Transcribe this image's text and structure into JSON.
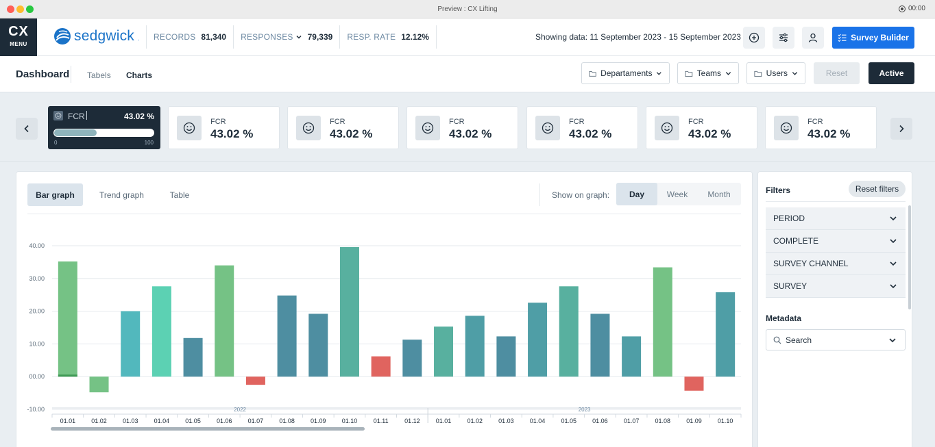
{
  "window": {
    "title": "Preview : CX Lifting",
    "time": "00:00"
  },
  "header": {
    "cx_label": "CX",
    "menu_label": "MENU",
    "logo_text": "sedgwick",
    "logo_mark": ".",
    "stats": [
      {
        "label": "RECORDS",
        "value": "81,340"
      },
      {
        "label": "RESPONSES",
        "value": "79,339"
      },
      {
        "label": "RESP. RATE",
        "value": "12.12%"
      }
    ],
    "showing_text": "Showing data: 11 September 2023 - 15 September 2023",
    "survey_button": "Survey Bulider"
  },
  "subheader": {
    "title": "Dashboard",
    "tabs": [
      "Tabels",
      "Charts"
    ],
    "filters": [
      "Departaments",
      "Teams",
      "Users"
    ],
    "reset_label": "Reset",
    "active_label": "Active"
  },
  "kpi": {
    "active": {
      "label": "FCR",
      "value": "43.02 %",
      "progress": 0.4302,
      "min": "0",
      "max": "100"
    },
    "cards": [
      {
        "label": "FCR",
        "value": "43.02 %"
      },
      {
        "label": "FCR",
        "value": "43.02 %"
      },
      {
        "label": "FCR",
        "value": "43.02 %"
      },
      {
        "label": "FCR",
        "value": "43.02 %"
      },
      {
        "label": "FCR",
        "value": "43.02 %"
      },
      {
        "label": "FCR",
        "value": "43.02 %"
      }
    ]
  },
  "graph_tabs": [
    "Bar graph",
    "Trend graph",
    "Table"
  ],
  "show_on_graph_label": "Show on graph:",
  "period_tabs": [
    "Day",
    "Week",
    "Month"
  ],
  "filters_panel": {
    "title": "Filters",
    "reset_label": "Reset filters",
    "items": [
      "PERIOD",
      "COMPLETE",
      "SURVEY CHANNEL",
      "SURVEY"
    ],
    "metadata_title": "Metadata",
    "search_label": "Search"
  },
  "colors": {
    "navy": "#1d2b38",
    "accent": "#1a73e8",
    "negative": "#e0645f"
  },
  "chart_data": {
    "type": "bar",
    "ylim": [
      -10,
      40
    ],
    "yticks": [
      "-10.00",
      "00.00",
      "10.00",
      "20.00",
      "30.00",
      "40.00"
    ],
    "year_groups": [
      {
        "label": "2022",
        "count": 12
      },
      {
        "label": "2023",
        "count": 10
      }
    ],
    "categories": [
      "01.01",
      "01.02",
      "01.03",
      "01.04",
      "01.05",
      "01.06",
      "01.07",
      "01.08",
      "01.09",
      "01.10",
      "01.11",
      "01.12",
      "01.01",
      "01.02",
      "01.03",
      "01.04",
      "01.05",
      "01.06",
      "01.07",
      "01.08",
      "01.09",
      "01.10"
    ],
    "values": [
      35.2,
      -4.8,
      20.0,
      27.6,
      11.8,
      34.0,
      -2.5,
      24.8,
      19.2,
      39.6,
      6.2,
      11.3,
      15.3,
      18.6,
      12.3,
      22.6,
      27.6,
      19.2,
      12.3,
      33.4,
      -4.3,
      25.8
    ],
    "colors": [
      "#75c285",
      "#75c285",
      "#52b8bd",
      "#5cd1b3",
      "#4e8ea1",
      "#75c285",
      "#e0645f",
      "#4e8ea1",
      "#4e8ea1",
      "#58b09f",
      "#e0645f",
      "#4e8ea1",
      "#58b09f",
      "#4f9ea6",
      "#4e8ea1",
      "#4f9ea6",
      "#58b09f",
      "#4e8ea1",
      "#4f9ea6",
      "#75c285",
      "#e0645f",
      "#4f9ea6"
    ]
  }
}
